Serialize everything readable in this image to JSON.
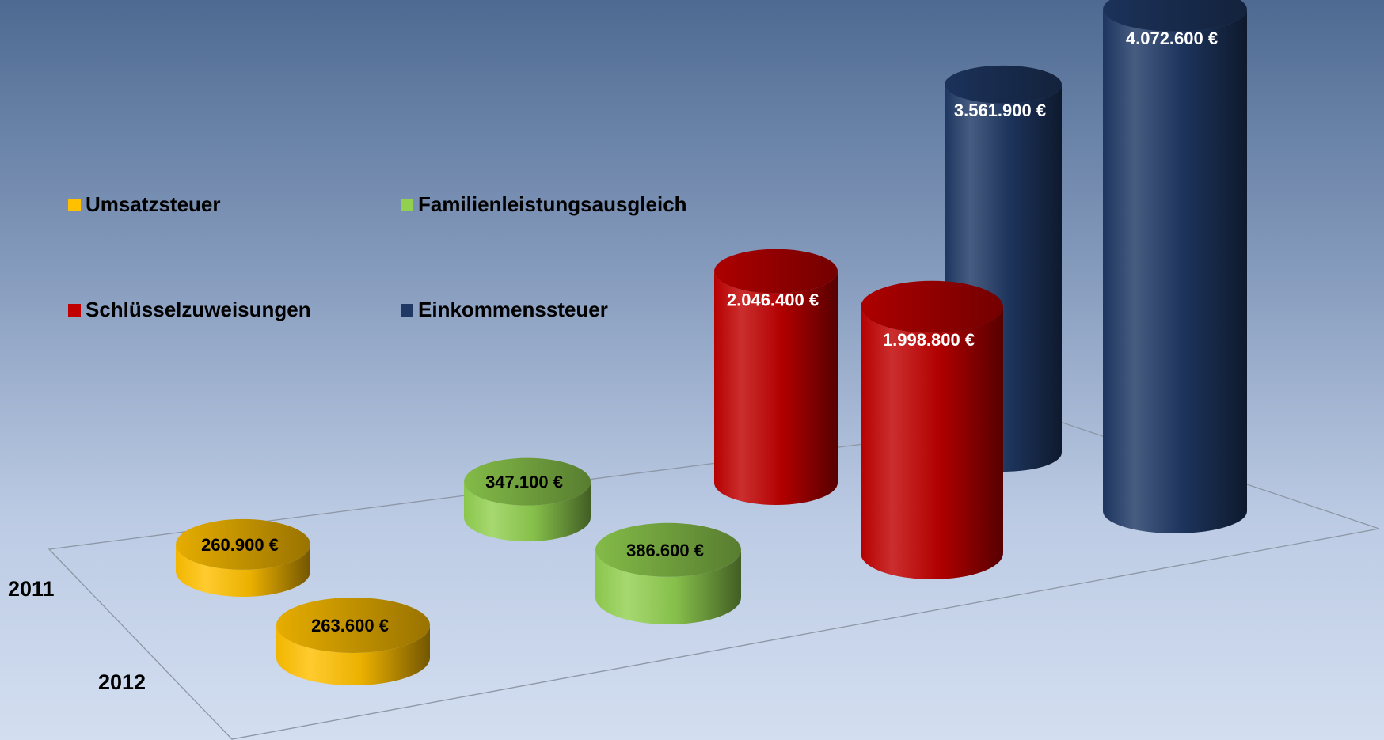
{
  "chart_data": {
    "type": "bar",
    "style": "3d-cylinder",
    "categories": [
      "Umsatzsteuer",
      "Familienleistungsausgleich",
      "Schlüsselzuweisungen",
      "Einkommenssteuer"
    ],
    "rows": [
      "2011",
      "2012"
    ],
    "series": [
      {
        "name": "2011",
        "values": [
          260900,
          347100,
          2046400,
          3561900
        ]
      },
      {
        "name": "2012",
        "values": [
          263600,
          386600,
          1998800,
          4072600
        ]
      }
    ],
    "value_labels": [
      [
        "260.900 €",
        "347.100 €",
        "2.046.400 €",
        "3.561.900 €"
      ],
      [
        "263.600 €",
        "386.600 €",
        "1.998.800 €",
        "4.072.600 €"
      ]
    ],
    "ylim": [
      0,
      4072600
    ],
    "grid": false,
    "legend_placement": "left",
    "colors": {
      "Umsatzsteuer": "#FFC000",
      "Familienleistungsausgleich": "#92D050",
      "Schlüsselzuweisungen": "#C00000",
      "Einkommenssteuer": "#1F3864"
    }
  }
}
